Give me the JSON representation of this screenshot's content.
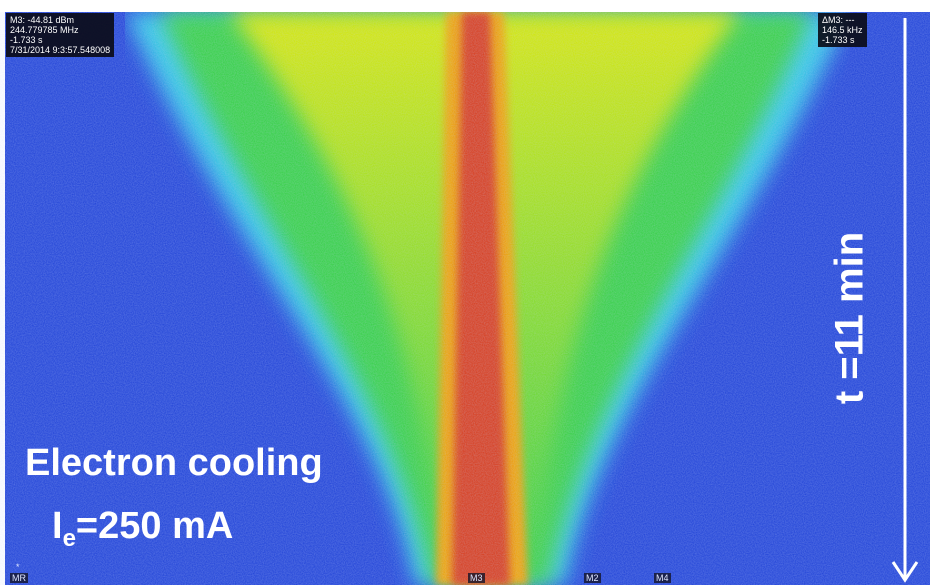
{
  "marker_readout": {
    "lines": [
      "M3: -44.81 dBm",
      "244.779785 MHz",
      "-1.733 s",
      "7/31/2014 9:3:57.548008"
    ]
  },
  "delta_readout": {
    "lines": [
      "ΔM3: ---",
      "146.5 kHz",
      "-1.733 s"
    ]
  },
  "annotation": {
    "title": "Electron cooling",
    "current_symbol": "I",
    "current_subscript": "e",
    "current_value": "=250 mA"
  },
  "time_label": "t =11 min",
  "reference_star": "*",
  "markers": [
    "MR",
    "M3",
    "M2",
    "M4"
  ]
}
